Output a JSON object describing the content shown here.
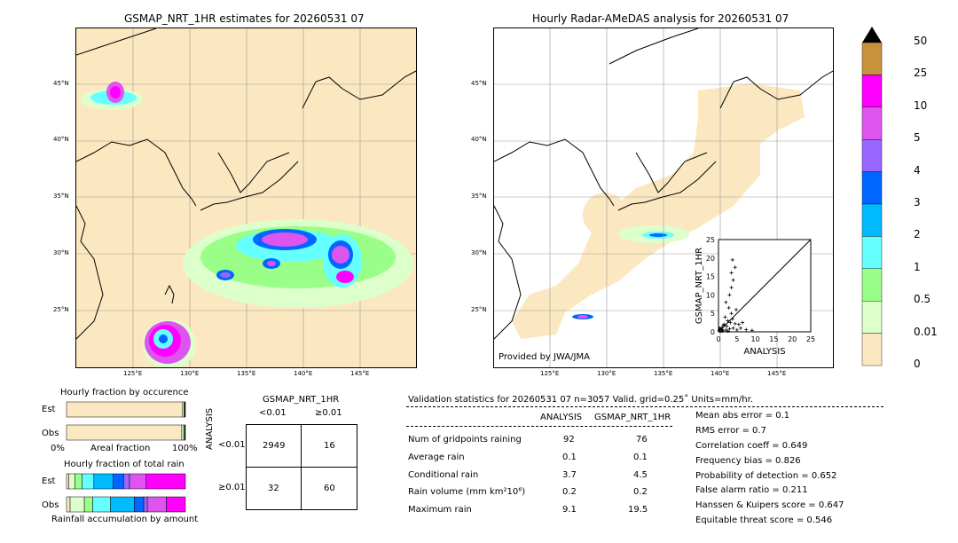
{
  "left_map": {
    "title": "GSMAP_NRT_1HR estimates for 20260531 07",
    "lat_labels": [
      "45°N",
      "40°N",
      "35°N",
      "30°N",
      "25°N"
    ],
    "lon_labels": [
      "125°E",
      "130°E",
      "135°E",
      "140°E",
      "145°E"
    ]
  },
  "right_map": {
    "title": "Hourly Radar-AMeDAS analysis for 20260531 07",
    "lat_labels": [
      "45°N",
      "40°N",
      "35°N",
      "30°N",
      "25°N"
    ],
    "lon_labels": [
      "125°E",
      "130°E",
      "135°E",
      "140°E",
      "145°E"
    ],
    "credit": "Provided by JWA/JMA"
  },
  "colorbar": {
    "labels": [
      "50",
      "25",
      "10",
      "5",
      "4",
      "3",
      "2",
      "1",
      "0.5",
      "0.01",
      "0"
    ],
    "colors": [
      "#c8913c",
      "#ff00ff",
      "#dd55ee",
      "#9966ff",
      "#0066ff",
      "#00bbff",
      "#66ffff",
      "#99ff88",
      "#ddffcc",
      "#fce8c0"
    ]
  },
  "chart_data": [
    {
      "type": "scatter",
      "xlabel": "ANALYSIS",
      "ylabel": "GSMAP_NRT_1HR",
      "xlim": [
        0,
        25
      ],
      "ylim": [
        0,
        25
      ],
      "ticks": [
        "0",
        "5",
        "10",
        "15",
        "20",
        "25"
      ],
      "points": [
        [
          0.2,
          0.3
        ],
        [
          0.5,
          0.1
        ],
        [
          0.8,
          0.6
        ],
        [
          1.0,
          1.2
        ],
        [
          1.2,
          0.4
        ],
        [
          1.5,
          2.0
        ],
        [
          0.3,
          1.0
        ],
        [
          2.0,
          0.5
        ],
        [
          2.2,
          1.5
        ],
        [
          2.5,
          3.0
        ],
        [
          3.0,
          0.8
        ],
        [
          3.2,
          2.5
        ],
        [
          1.8,
          4.0
        ],
        [
          2.8,
          6.5
        ],
        [
          3.5,
          5.0
        ],
        [
          4.0,
          1.0
        ],
        [
          4.5,
          2.2
        ],
        [
          5.0,
          0.5
        ],
        [
          5.5,
          2.0
        ],
        [
          6.0,
          1.0
        ],
        [
          3.0,
          10.0
        ],
        [
          3.5,
          12.0
        ],
        [
          4.0,
          14.0
        ],
        [
          3.5,
          16.0
        ],
        [
          4.5,
          17.5
        ],
        [
          3.8,
          19.5
        ],
        [
          2.0,
          8.0
        ],
        [
          6.5,
          2.5
        ],
        [
          7.5,
          0.6
        ],
        [
          9.1,
          0.4
        ],
        [
          1.0,
          0.2
        ],
        [
          0.4,
          0.8
        ],
        [
          2.6,
          0.2
        ],
        [
          1.4,
          1.8
        ],
        [
          3.8,
          3.5
        ],
        [
          4.8,
          6.0
        ]
      ]
    },
    {
      "type": "bar",
      "title": "Hourly fraction by occurence",
      "categories": [
        "Est",
        "Obs"
      ],
      "xlabel": "Areal fraction",
      "x_tick_left": "0%",
      "x_tick_right": "100%",
      "series": [
        {
          "values": [
            0.976,
            0.969
          ],
          "color": "#fce8c0"
        },
        {
          "values": [
            0.012,
            0.017
          ],
          "color": "#ddffcc"
        },
        {
          "values": [
            0.006,
            0.008
          ],
          "color": "#99ff88"
        },
        {
          "values": [
            0.004,
            0.004
          ],
          "color": "#66ffff"
        },
        {
          "values": [
            0.002,
            0.002
          ],
          "color": "#0066ff"
        }
      ]
    },
    {
      "type": "bar",
      "title": "Hourly fraction of total rain",
      "categories": [
        "Est",
        "Obs"
      ],
      "xlabel": "Rainfall accumulation by amount",
      "series": [
        {
          "values": [
            0.02,
            0.03
          ],
          "color": "#fce8c0"
        },
        {
          "values": [
            0.05,
            0.12
          ],
          "color": "#ddffcc"
        },
        {
          "values": [
            0.06,
            0.07
          ],
          "color": "#99ff88"
        },
        {
          "values": [
            0.1,
            0.15
          ],
          "color": "#66ffff"
        },
        {
          "values": [
            0.16,
            0.2
          ],
          "color": "#00bbff"
        },
        {
          "values": [
            0.09,
            0.08
          ],
          "color": "#0066ff"
        },
        {
          "values": [
            0.05,
            0.03
          ],
          "color": "#9966ff"
        },
        {
          "values": [
            0.14,
            0.16
          ],
          "color": "#dd55ee"
        },
        {
          "values": [
            0.33,
            0.16
          ],
          "color": "#ff00ff"
        }
      ]
    }
  ],
  "contingency": {
    "title": "GSMAP_NRT_1HR",
    "col_lt": "<0.01",
    "col_ge": "≥0.01",
    "row_axis": "ANALYSIS",
    "row_lt": "<0.01",
    "row_ge": "≥0.01",
    "cells": [
      "2949",
      "16",
      "32",
      "60"
    ]
  },
  "validation": {
    "header": "Validation statistics for 20260531 07  n=3057 Valid. grid=0.25˚ Units=mm/hr.",
    "col_analysis": "ANALYSIS",
    "col_gsmap": "GSMAP_NRT_1HR",
    "rows": [
      {
        "label": "Num of gridpoints raining",
        "a": "92",
        "g": "76"
      },
      {
        "label": "Average rain",
        "a": "0.1",
        "g": "0.1"
      },
      {
        "label": "Conditional rain",
        "a": "3.7",
        "g": "4.5"
      },
      {
        "label": "Rain volume (mm km²10⁶)",
        "a": "0.2",
        "g": "0.2"
      },
      {
        "label": "Maximum rain",
        "a": "9.1",
        "g": "19.5"
      }
    ],
    "scores": [
      "Mean abs error =    0.1",
      "RMS error =    0.7",
      "Correlation coeff =  0.649",
      "Frequency bias =  0.826",
      "Probability of detection =  0.652",
      "False alarm ratio =  0.211",
      "Hanssen & Kuipers score =  0.647",
      "Equitable threat score =  0.546"
    ]
  }
}
